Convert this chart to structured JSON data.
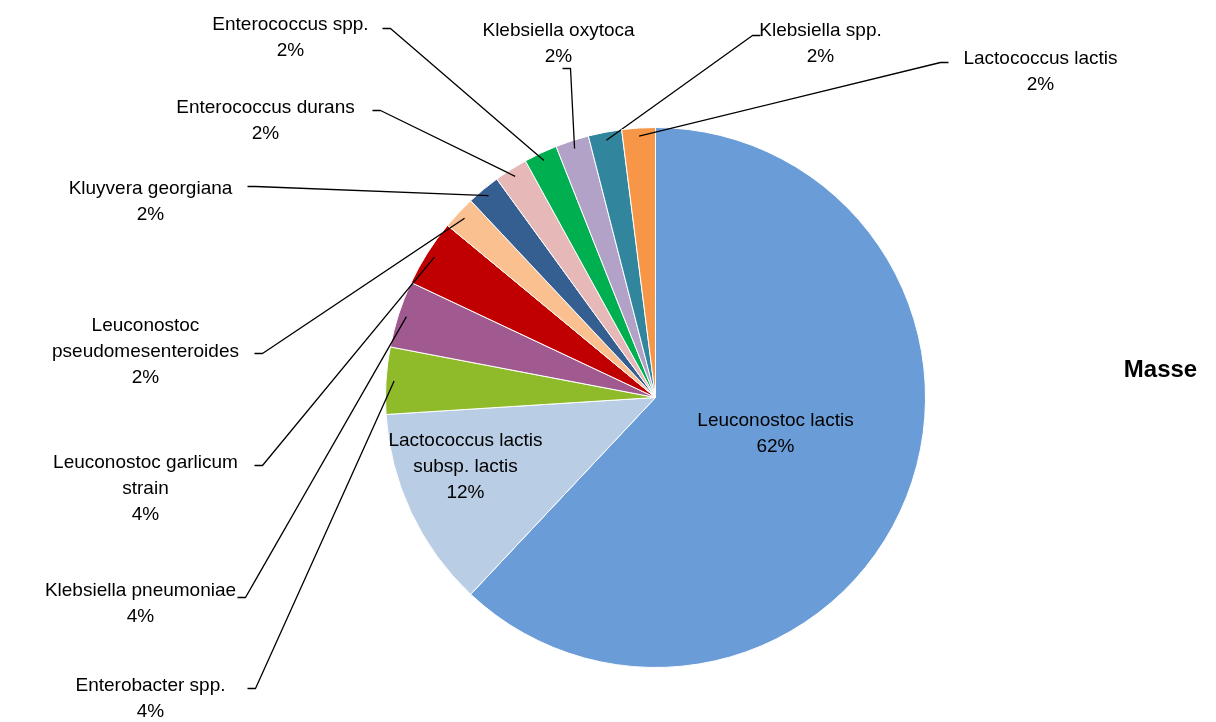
{
  "chart_data": {
    "type": "pie",
    "title": "Masse",
    "categories": [
      "Leuconostoc lactis",
      "Lactococcus lactis subsp. lactis",
      "Enterobacter spp.",
      "Klebsiella pneumoniae",
      "Leuconostoc garlicum strain",
      "Leuconostoc pseudomesenteroides",
      "Kluyvera georgiana",
      "Enterococcus durans",
      "Enterococcus spp.",
      "Klebsiella oxytoca",
      "Klebsiella spp.",
      "Lactococcus lactis"
    ],
    "values": [
      62,
      12,
      4,
      4,
      4,
      2,
      2,
      2,
      2,
      2,
      2,
      2
    ],
    "value_labels": [
      "62%",
      "12%",
      "4%",
      "4%",
      "4%",
      "2%",
      "2%",
      "2%",
      "2%",
      "2%",
      "2%",
      "2%"
    ],
    "colors": [
      "#6a9cd8",
      "#b9cde5",
      "#8fba2a",
      "#a05a8f",
      "#c00000",
      "#fac090",
      "#365f91",
      "#e6b9b8",
      "#00b050",
      "#b3a2c7",
      "#31859c",
      "#f79646"
    ]
  }
}
